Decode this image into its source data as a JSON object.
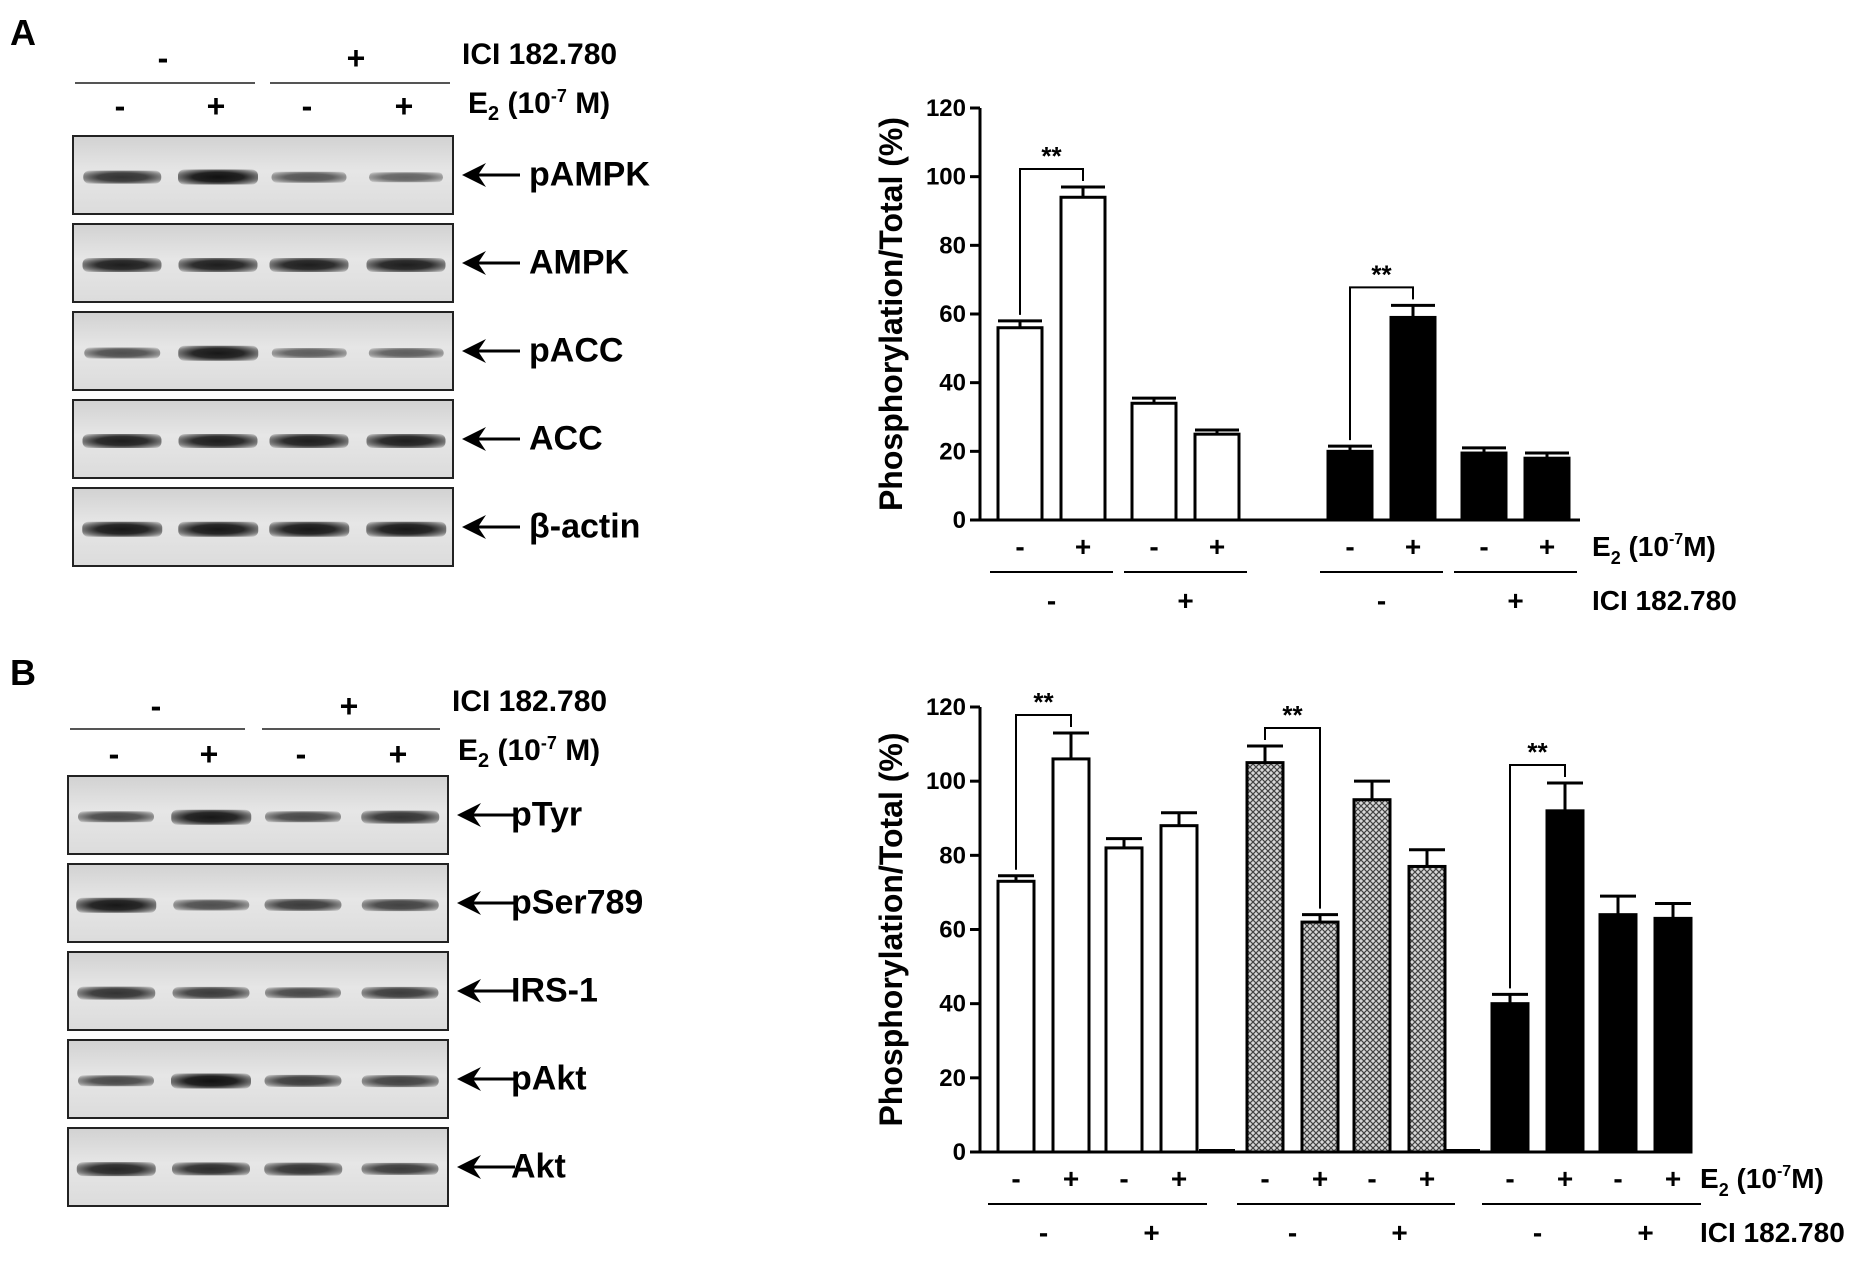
{
  "panel_a": {
    "letter": "A",
    "ici_label": "ICI 182.780",
    "e2_label_main": "E",
    "e2_label_sub": "2",
    "e2_label_rest": " (10",
    "e2_label_sup": "-7",
    "e2_label_end": " M)",
    "ici_signs": [
      "-",
      "+"
    ],
    "e2_signs": [
      "-",
      "+",
      "-",
      "+"
    ],
    "blots": [
      {
        "label": "pAMPK",
        "intensity": [
          0.75,
          1.0,
          0.5,
          0.4
        ]
      },
      {
        "label": "AMPK",
        "intensity": [
          0.9,
          0.9,
          0.9,
          0.9
        ]
      },
      {
        "label": "pACC",
        "intensity": [
          0.55,
          0.95,
          0.45,
          0.45
        ]
      },
      {
        "label": "ACC",
        "intensity": [
          0.9,
          0.9,
          0.9,
          0.9
        ]
      },
      {
        "label": "β-actin",
        "intensity": [
          0.95,
          0.95,
          0.95,
          0.95
        ]
      }
    ]
  },
  "panel_b": {
    "letter": "B",
    "ici_label": "ICI 182.780",
    "e2_label_main": "E",
    "e2_label_sub": "2",
    "e2_label_rest": " (10",
    "e2_label_sup": "-7",
    "e2_label_end": " M)",
    "ici_signs": [
      "-",
      "+"
    ],
    "e2_signs": [
      "-",
      "+",
      "-",
      "+"
    ],
    "blots": [
      {
        "label": "pTyr",
        "intensity": [
          0.6,
          0.95,
          0.6,
          0.75
        ]
      },
      {
        "label": "pSer789",
        "intensity": [
          0.95,
          0.55,
          0.7,
          0.65
        ]
      },
      {
        "label": "IRS-1",
        "intensity": [
          0.75,
          0.7,
          0.6,
          0.7
        ]
      },
      {
        "label": "pAkt",
        "intensity": [
          0.6,
          1.0,
          0.7,
          0.65
        ]
      },
      {
        "label": "Akt",
        "intensity": [
          0.85,
          0.8,
          0.75,
          0.7
        ]
      }
    ]
  },
  "chart_data": [
    {
      "type": "bar",
      "ylabel": "Phosphorylation/Total (%)",
      "ylim": [
        0,
        120
      ],
      "yticks": [
        0,
        20,
        40,
        60,
        80,
        100,
        120
      ],
      "groups": [
        {
          "fill": "white",
          "bars": [
            {
              "e2": "-",
              "value": 56,
              "err": 2
            },
            {
              "e2": "+",
              "value": 94,
              "err": 3
            }
          ],
          "ici": "-",
          "signif": "**"
        },
        {
          "fill": "white",
          "bars": [
            {
              "e2": "-",
              "value": 34,
              "err": 1.5
            },
            {
              "e2": "+",
              "value": 25,
              "err": 1.2
            }
          ],
          "ici": "+",
          "signif": ""
        },
        {
          "fill": "black",
          "bars": [
            {
              "e2": "-",
              "value": 20,
              "err": 1.5
            },
            {
              "e2": "+",
              "value": 59,
              "err": 3.5
            }
          ],
          "ici": "-",
          "signif": "**"
        },
        {
          "fill": "black",
          "bars": [
            {
              "e2": "-",
              "value": 19.5,
              "err": 1.5
            },
            {
              "e2": "+",
              "value": 18,
              "err": 1.5
            }
          ],
          "ici": "+",
          "signif": ""
        }
      ],
      "e2_label_main": "E",
      "e2_label_sub": "2",
      "e2_label_rest": " (10",
      "e2_label_sup": "-7",
      "e2_label_end": "M)",
      "ici_label": "ICI 182.780"
    },
    {
      "type": "bar",
      "ylabel": "Phosphorylation/Total (%)",
      "ylim": [
        0,
        120
      ],
      "yticks": [
        0,
        20,
        40,
        60,
        80,
        100,
        120
      ],
      "groups": [
        {
          "fill": "white",
          "bars": [
            {
              "e2": "-",
              "value": 73,
              "err": 1.5
            },
            {
              "e2": "+",
              "value": 106,
              "err": 7
            }
          ],
          "ici": "-",
          "signif": "**"
        },
        {
          "fill": "white",
          "bars": [
            {
              "e2": "-",
              "value": 82,
              "err": 2.5
            },
            {
              "e2": "+",
              "value": 88,
              "err": 3.5
            }
          ],
          "ici": "+",
          "signif": ""
        },
        {
          "fill": "hatch",
          "bars": [
            {
              "e2": "-",
              "value": 105,
              "err": 4.5
            },
            {
              "e2": "+",
              "value": 62,
              "err": 2
            }
          ],
          "ici": "-",
          "signif": "**"
        },
        {
          "fill": "hatch",
          "bars": [
            {
              "e2": "-",
              "value": 95,
              "err": 5
            },
            {
              "e2": "+",
              "value": 77,
              "err": 4.5
            }
          ],
          "ici": "+",
          "signif": ""
        },
        {
          "fill": "black",
          "bars": [
            {
              "e2": "-",
              "value": 40,
              "err": 2.5
            },
            {
              "e2": "+",
              "value": 92,
              "err": 7.5
            }
          ],
          "ici": "-",
          "signif": "**"
        },
        {
          "fill": "black",
          "bars": [
            {
              "e2": "-",
              "value": 64,
              "err": 5
            },
            {
              "e2": "+",
              "value": 63,
              "err": 4
            }
          ],
          "ici": "+",
          "signif": ""
        }
      ],
      "e2_label_main": "E",
      "e2_label_sub": "2",
      "e2_label_rest": " (10",
      "e2_label_sup": "-7",
      "e2_label_end": "M)",
      "ici_label": "ICI 182.780"
    }
  ]
}
